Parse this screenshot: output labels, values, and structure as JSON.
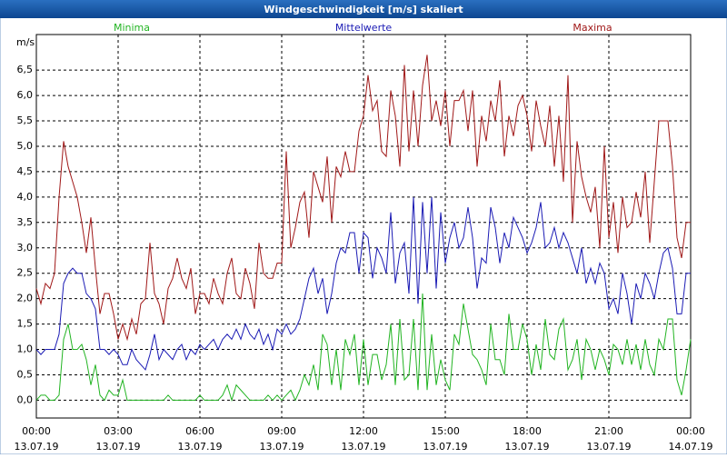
{
  "chart_data": {
    "type": "line",
    "title": "Windgeschwindigkeit [m/s] skaliert",
    "y_label": "m/s",
    "grid": true,
    "xlim": [
      0,
      1440
    ],
    "ylim": [
      -0.35,
      7.2
    ],
    "xticks": [
      {
        "value": 0,
        "label": [
          "00:00",
          "13.07.19"
        ]
      },
      {
        "value": 180,
        "label": [
          "03:00",
          "13.07.19"
        ]
      },
      {
        "value": 360,
        "label": [
          "06:00",
          "13.07.19"
        ]
      },
      {
        "value": 540,
        "label": [
          "09:00",
          "13.07.19"
        ]
      },
      {
        "value": 720,
        "label": [
          "12:00",
          "13.07.19"
        ]
      },
      {
        "value": 900,
        "label": [
          "15:00",
          "13.07.19"
        ]
      },
      {
        "value": 1080,
        "label": [
          "18:00",
          "13.07.19"
        ]
      },
      {
        "value": 1260,
        "label": [
          "21:00",
          "13.07.19"
        ]
      },
      {
        "value": 1440,
        "label": [
          "00:00",
          "14.07.19"
        ]
      }
    ],
    "yticks": [
      {
        "value": 0,
        "label": "0,0"
      },
      {
        "value": 0.5,
        "label": "0,5"
      },
      {
        "value": 1,
        "label": "1,0"
      },
      {
        "value": 1.5,
        "label": "1,5"
      },
      {
        "value": 2,
        "label": "2,0"
      },
      {
        "value": 2.5,
        "label": "2,5"
      },
      {
        "value": 3,
        "label": "3,0"
      },
      {
        "value": 3.5,
        "label": "3,5"
      },
      {
        "value": 4,
        "label": "4,0"
      },
      {
        "value": 4.5,
        "label": "4,5"
      },
      {
        "value": 5,
        "label": "5,0"
      },
      {
        "value": 5.5,
        "label": "5,5"
      },
      {
        "value": 6,
        "label": "6,0"
      },
      {
        "value": 6.5,
        "label": "6,5"
      }
    ],
    "x": [
      0,
      10,
      20,
      30,
      40,
      50,
      60,
      70,
      80,
      90,
      100,
      110,
      120,
      130,
      140,
      150,
      160,
      170,
      180,
      190,
      200,
      210,
      220,
      230,
      240,
      250,
      260,
      270,
      280,
      290,
      300,
      310,
      320,
      330,
      340,
      350,
      360,
      370,
      380,
      390,
      400,
      410,
      420,
      430,
      440,
      450,
      460,
      470,
      480,
      490,
      500,
      510,
      520,
      530,
      540,
      550,
      560,
      570,
      580,
      590,
      600,
      610,
      620,
      630,
      640,
      650,
      660,
      670,
      680,
      690,
      700,
      710,
      720,
      730,
      740,
      750,
      760,
      770,
      780,
      790,
      800,
      810,
      820,
      830,
      840,
      850,
      860,
      870,
      880,
      890,
      900,
      910,
      920,
      930,
      940,
      950,
      960,
      970,
      980,
      990,
      1000,
      1010,
      1020,
      1030,
      1040,
      1050,
      1060,
      1070,
      1080,
      1090,
      1100,
      1110,
      1120,
      1130,
      1140,
      1150,
      1160,
      1170,
      1180,
      1190,
      1200,
      1210,
      1220,
      1230,
      1240,
      1250,
      1260,
      1270,
      1280,
      1290,
      1300,
      1310,
      1320,
      1330,
      1340,
      1350,
      1360,
      1370,
      1380,
      1390,
      1400,
      1410,
      1420,
      1430,
      1440
    ],
    "series": [
      {
        "name": "Minima",
        "color": "#22b422",
        "values": [
          0.0,
          0.1,
          0.1,
          0.0,
          0.0,
          0.1,
          1.2,
          1.5,
          1.0,
          1.0,
          1.1,
          0.8,
          0.3,
          0.7,
          0.1,
          0.0,
          0.2,
          0.1,
          0.1,
          0.4,
          0.0,
          0.0,
          0.0,
          0.0,
          0.0,
          0.0,
          0.0,
          0.0,
          0.0,
          0.1,
          0.0,
          0.0,
          0.0,
          0.0,
          0.0,
          0.0,
          0.1,
          0.0,
          0.0,
          0.0,
          0.0,
          0.1,
          0.3,
          0.0,
          0.3,
          0.2,
          0.1,
          0.0,
          0.0,
          0.0,
          0.0,
          0.1,
          0.0,
          0.1,
          0.0,
          0.1,
          0.2,
          0.0,
          0.2,
          0.5,
          0.3,
          0.7,
          0.2,
          1.3,
          1.1,
          0.3,
          1.0,
          0.2,
          1.2,
          0.9,
          1.3,
          0.3,
          1.2,
          0.3,
          0.9,
          0.9,
          0.4,
          0.7,
          1.5,
          0.3,
          1.6,
          0.4,
          0.5,
          1.6,
          0.2,
          2.1,
          0.2,
          1.3,
          0.3,
          0.8,
          0.4,
          0.2,
          1.3,
          1.1,
          1.9,
          1.4,
          0.9,
          0.8,
          0.6,
          0.3,
          1.5,
          0.8,
          0.8,
          0.5,
          1.7,
          1.0,
          1.0,
          1.5,
          1.2,
          0.5,
          1.1,
          0.6,
          1.6,
          0.9,
          0.8,
          1.4,
          1.6,
          0.6,
          0.8,
          1.2,
          0.4,
          1.2,
          1.0,
          0.6,
          1.0,
          0.8,
          0.5,
          1.1,
          1.0,
          0.7,
          1.2,
          0.7,
          1.1,
          0.6,
          1.2,
          0.7,
          0.5,
          1.2,
          1.0,
          1.6,
          1.6,
          0.4,
          0.1,
          0.6,
          1.2
        ]
      },
      {
        "name": "Mittelwerte",
        "color": "#1a1ab4",
        "values": [
          1.0,
          0.9,
          1.0,
          1.0,
          1.0,
          1.3,
          2.3,
          2.5,
          2.6,
          2.5,
          2.5,
          2.1,
          2.0,
          1.8,
          1.0,
          1.0,
          0.9,
          1.0,
          0.9,
          0.7,
          0.7,
          1.0,
          0.8,
          0.7,
          0.6,
          0.9,
          1.3,
          0.8,
          1.0,
          0.9,
          0.8,
          1.0,
          1.1,
          0.8,
          1.0,
          0.9,
          1.1,
          1.0,
          1.1,
          1.2,
          1.0,
          1.2,
          1.3,
          1.2,
          1.4,
          1.2,
          1.5,
          1.3,
          1.2,
          1.4,
          1.1,
          1.3,
          1.0,
          1.4,
          1.3,
          1.5,
          1.3,
          1.4,
          1.6,
          2.0,
          2.4,
          2.6,
          2.1,
          2.4,
          1.7,
          2.1,
          2.7,
          3.0,
          2.9,
          3.3,
          3.3,
          2.5,
          3.3,
          3.2,
          2.4,
          3.0,
          2.8,
          2.5,
          3.7,
          2.3,
          2.9,
          3.1,
          2.1,
          4.0,
          1.9,
          3.9,
          2.5,
          4.0,
          2.2,
          3.7,
          2.7,
          3.2,
          3.5,
          3.0,
          3.2,
          3.8,
          3.2,
          2.2,
          2.8,
          2.7,
          3.8,
          3.4,
          2.7,
          3.3,
          3.0,
          3.6,
          3.4,
          3.2,
          2.9,
          3.1,
          3.4,
          3.9,
          3.0,
          3.1,
          3.4,
          3.0,
          3.3,
          3.1,
          2.8,
          2.5,
          3.0,
          2.3,
          2.6,
          2.3,
          2.7,
          2.5,
          1.8,
          2.0,
          1.7,
          2.5,
          2.1,
          1.5,
          2.3,
          2.0,
          2.5,
          2.3,
          2.0,
          2.5,
          2.9,
          3.0,
          2.6,
          1.7,
          1.7,
          2.5,
          2.5
        ]
      },
      {
        "name": "Maxima",
        "color": "#a01818",
        "values": [
          2.2,
          1.9,
          2.3,
          2.2,
          2.5,
          4.0,
          5.1,
          4.6,
          4.3,
          4.0,
          3.5,
          2.9,
          3.6,
          2.6,
          1.7,
          2.1,
          2.1,
          1.7,
          1.2,
          1.5,
          1.2,
          1.6,
          1.3,
          1.9,
          2.0,
          3.1,
          2.1,
          1.9,
          1.5,
          2.2,
          2.4,
          2.8,
          2.4,
          2.2,
          2.6,
          1.7,
          2.1,
          2.1,
          1.9,
          2.4,
          2.1,
          1.9,
          2.5,
          2.8,
          2.1,
          2.0,
          2.6,
          2.3,
          1.8,
          3.1,
          2.5,
          2.4,
          2.4,
          2.7,
          2.7,
          4.9,
          3.0,
          3.4,
          3.9,
          4.1,
          3.2,
          4.5,
          4.2,
          3.9,
          4.8,
          3.5,
          4.6,
          4.4,
          4.9,
          4.5,
          4.5,
          5.3,
          5.6,
          6.4,
          5.7,
          5.9,
          4.9,
          4.8,
          6.1,
          5.6,
          4.6,
          6.6,
          4.9,
          6.1,
          5.0,
          6.2,
          6.8,
          5.5,
          5.9,
          5.4,
          6.1,
          5.0,
          5.9,
          5.9,
          6.1,
          5.3,
          6.1,
          4.6,
          5.6,
          5.1,
          5.9,
          5.5,
          6.3,
          4.8,
          5.6,
          5.2,
          5.8,
          6.0,
          5.6,
          4.9,
          5.9,
          5.4,
          5.0,
          5.8,
          4.6,
          5.6,
          4.3,
          6.4,
          3.5,
          5.1,
          4.4,
          4.0,
          3.7,
          4.2,
          3.0,
          5.0,
          3.2,
          3.9,
          2.9,
          4.0,
          3.4,
          3.5,
          4.1,
          3.6,
          4.5,
          3.1,
          4.3,
          5.5,
          5.5,
          5.5,
          4.6,
          3.2,
          2.8,
          3.5,
          3.5
        ]
      }
    ]
  }
}
